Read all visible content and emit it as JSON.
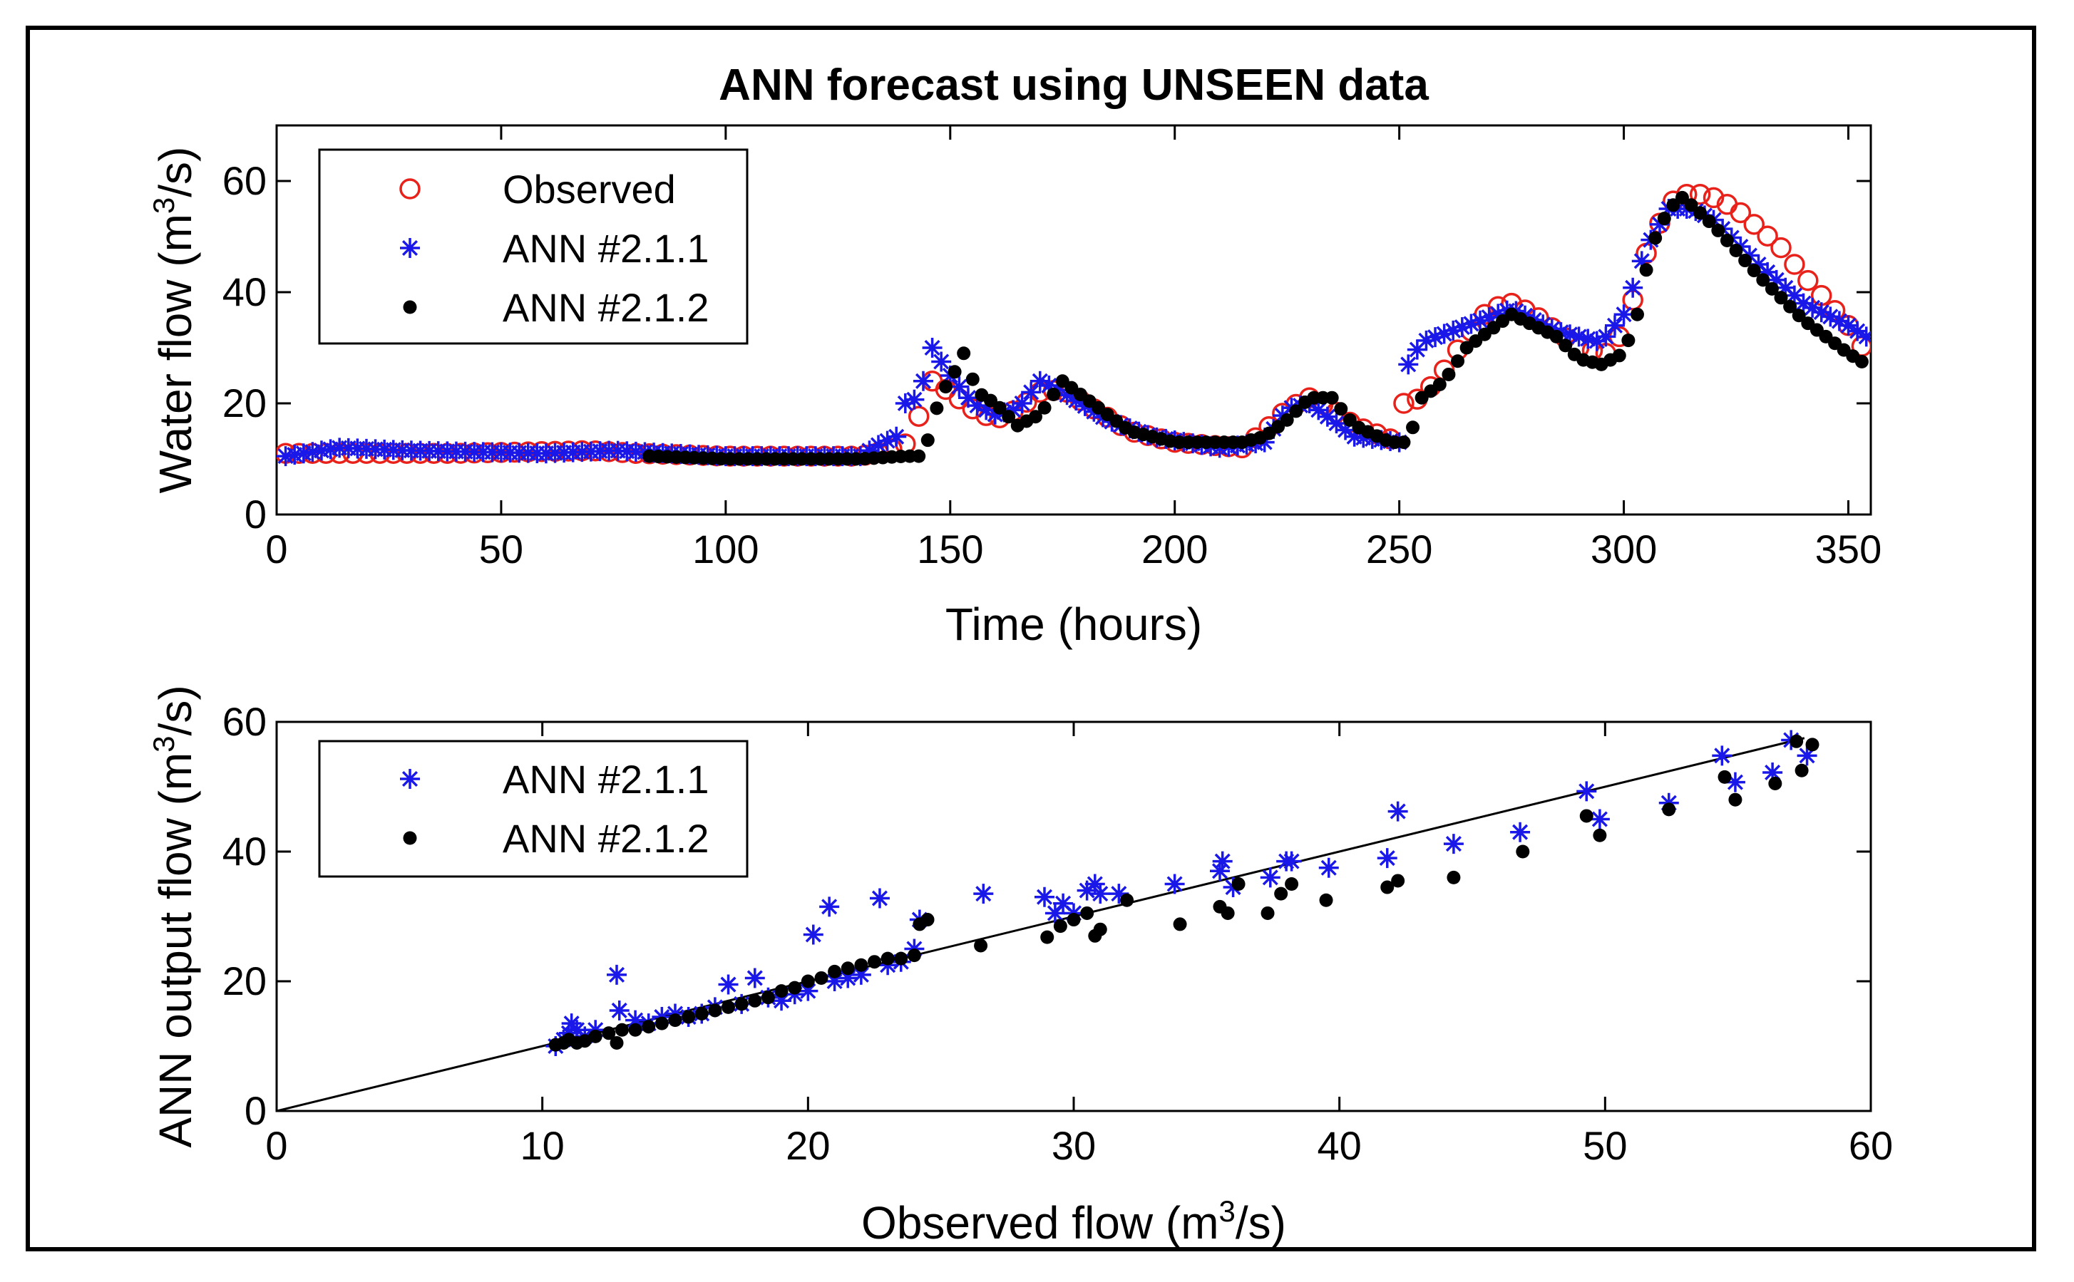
{
  "chart_data": [
    {
      "type": "scatter",
      "title": "ANN forecast using UNSEEN data",
      "xlabel": "Time (hours)",
      "ylabel": "Water flow (m³/s)",
      "ylabel_base": "Water flow (m",
      "ylabel_sup": "3",
      "ylabel_end": "/s)",
      "xlim": [
        0,
        355
      ],
      "ylim": [
        0,
        70
      ],
      "xticks": [
        0,
        50,
        100,
        150,
        200,
        250,
        300,
        350
      ],
      "yticks": [
        0,
        20,
        40,
        60
      ],
      "legend_position": "top-left",
      "series": [
        {
          "name": "Observed",
          "marker": "circle-open",
          "color": "#e8211a",
          "anchors": [
            [
              2,
              11
            ],
            [
              40,
              11
            ],
            [
              70,
              11.5
            ],
            [
              80,
              11
            ],
            [
              100,
              10.5
            ],
            [
              130,
              10.5
            ],
            [
              136,
              11.5
            ],
            [
              141,
              13
            ],
            [
              144,
              20
            ],
            [
              146,
              24
            ],
            [
              150,
              22
            ],
            [
              155,
              19
            ],
            [
              160,
              17
            ],
            [
              165,
              19
            ],
            [
              170,
              22
            ],
            [
              175,
              22.5
            ],
            [
              180,
              20
            ],
            [
              190,
              15
            ],
            [
              200,
              13
            ],
            [
              215,
              12
            ],
            [
              220,
              15
            ],
            [
              225,
              19
            ],
            [
              230,
              21
            ],
            [
              235,
              19
            ],
            [
              240,
              16
            ],
            [
              250,
              13
            ],
            [
              251,
              20
            ],
            [
              255,
              21
            ],
            [
              260,
              26
            ],
            [
              265,
              32
            ],
            [
              270,
              37
            ],
            [
              275,
              38
            ],
            [
              280,
              36
            ],
            [
              290,
              30
            ],
            [
              296,
              29
            ],
            [
              300,
              33
            ],
            [
              305,
              47
            ],
            [
              310,
              56
            ],
            [
              315,
              58
            ],
            [
              320,
              57
            ],
            [
              325,
              55
            ],
            [
              335,
              48
            ],
            [
              340,
              43
            ],
            [
              350,
              34
            ],
            [
              354,
              29
            ]
          ]
        },
        {
          "name": "ANN #2.1.1",
          "marker": "asterisk",
          "color": "#1a18e8",
          "anchors": [
            [
              2,
              10.5
            ],
            [
              14,
              12
            ],
            [
              30,
              11.5
            ],
            [
              60,
              11
            ],
            [
              75,
              11.5
            ],
            [
              100,
              10.5
            ],
            [
              130,
              10.5
            ],
            [
              134,
              12.5
            ],
            [
              138,
              14
            ],
            [
              140,
              20
            ],
            [
              143,
              21
            ],
            [
              146,
              30
            ],
            [
              150,
              25
            ],
            [
              155,
              20
            ],
            [
              160,
              18
            ],
            [
              165,
              19
            ],
            [
              170,
              24
            ],
            [
              175,
              22
            ],
            [
              185,
              17
            ],
            [
              195,
              14
            ],
            [
              210,
              12
            ],
            [
              220,
              13
            ],
            [
              225,
              19
            ],
            [
              230,
              20
            ],
            [
              240,
              14
            ],
            [
              250,
              13
            ],
            [
              252,
              27
            ],
            [
              255,
              31
            ],
            [
              265,
              34
            ],
            [
              275,
              37
            ],
            [
              285,
              33
            ],
            [
              295,
              31
            ],
            [
              300,
              36
            ],
            [
              305,
              48
            ],
            [
              310,
              55
            ],
            [
              315,
              55
            ],
            [
              320,
              53
            ],
            [
              330,
              45
            ],
            [
              340,
              38
            ],
            [
              350,
              34
            ],
            [
              354,
              32
            ]
          ]
        },
        {
          "name": "ANN #2.1.2",
          "marker": "dot",
          "color": "#000000",
          "anchors": [
            [
              83,
              10.5
            ],
            [
              100,
              10
            ],
            [
              130,
              10
            ],
            [
              140,
              10.5
            ],
            [
              144,
              10.5
            ],
            [
              148,
              22
            ],
            [
              150,
              24
            ],
            [
              153,
              29
            ],
            [
              156,
              22
            ],
            [
              160,
              20
            ],
            [
              165,
              16
            ],
            [
              170,
              18
            ],
            [
              175,
              24
            ],
            [
              180,
              21
            ],
            [
              190,
              15
            ],
            [
              200,
              13
            ],
            [
              215,
              13
            ],
            [
              220,
              14
            ],
            [
              225,
              17
            ],
            [
              230,
              21
            ],
            [
              235,
              21
            ],
            [
              240,
              16
            ],
            [
              248,
              13
            ],
            [
              252,
              13
            ],
            [
              255,
              21
            ],
            [
              260,
              24
            ],
            [
              265,
              30
            ],
            [
              270,
              33
            ],
            [
              275,
              36
            ],
            [
              285,
              32
            ],
            [
              290,
              28
            ],
            [
              295,
              27
            ],
            [
              300,
              29
            ],
            [
              303,
              36
            ],
            [
              306,
              48
            ],
            [
              310,
              55
            ],
            [
              313,
              57
            ],
            [
              316,
              55
            ],
            [
              320,
              52
            ],
            [
              330,
              43
            ],
            [
              340,
              35
            ],
            [
              350,
              29
            ],
            [
              354,
              27
            ]
          ]
        }
      ]
    },
    {
      "type": "scatter",
      "title": "",
      "xlabel": "Observed flow (m³/s)",
      "xlabel_base": "Observed flow (m",
      "xlabel_sup": "3",
      "xlabel_end": "/s)",
      "ylabel": "ANN output flow (m³/s)",
      "ylabel_base": "ANN output flow (m",
      "ylabel_sup": "3",
      "ylabel_end": "/s)",
      "xlim": [
        0,
        60
      ],
      "ylim": [
        0,
        60
      ],
      "xticks": [
        0,
        10,
        20,
        30,
        40,
        50,
        60
      ],
      "yticks": [
        0,
        20,
        40,
        60
      ],
      "legend_position": "top-left",
      "reference_line": [
        [
          0,
          0
        ],
        [
          57.5,
          57.5
        ]
      ],
      "series": [
        {
          "name": "ANN #2.1.1",
          "marker": "asterisk",
          "color": "#1a18e8",
          "points": [
            [
              10.5,
              10
            ],
            [
              10.8,
              11
            ],
            [
              11,
              12
            ],
            [
              11.1,
              13.5
            ],
            [
              11.3,
              12.5
            ],
            [
              11.6,
              11.5
            ],
            [
              12,
              12.5
            ],
            [
              12.8,
              21
            ],
            [
              12.9,
              15.5
            ],
            [
              13.5,
              14
            ],
            [
              14,
              13.5
            ],
            [
              14.5,
              14.5
            ],
            [
              15,
              15
            ],
            [
              15.5,
              14.5
            ],
            [
              16,
              15
            ],
            [
              16.5,
              16
            ],
            [
              17,
              19.5
            ],
            [
              17.5,
              16.5
            ],
            [
              18,
              20.5
            ],
            [
              18.5,
              17.5
            ],
            [
              19,
              17
            ],
            [
              19.5,
              18
            ],
            [
              20,
              18.5
            ],
            [
              20.2,
              27.2
            ],
            [
              20.8,
              31.5
            ],
            [
              21,
              20
            ],
            [
              21.5,
              20.5
            ],
            [
              22,
              21
            ],
            [
              22.7,
              32.8
            ],
            [
              23,
              22.5
            ],
            [
              23.5,
              23
            ],
            [
              24,
              25
            ],
            [
              24.2,
              29.5
            ],
            [
              26.6,
              33.5
            ],
            [
              28.9,
              33
            ],
            [
              29.3,
              30.5
            ],
            [
              29.6,
              32
            ],
            [
              30,
              30.5
            ],
            [
              30.5,
              34
            ],
            [
              30.8,
              35
            ],
            [
              31,
              33.5
            ],
            [
              31.7,
              33.5
            ],
            [
              33.8,
              35
            ],
            [
              35.5,
              37
            ],
            [
              35.6,
              38.5
            ],
            [
              36,
              34.5
            ],
            [
              37.4,
              36
            ],
            [
              38,
              38.5
            ],
            [
              38.2,
              38.5
            ],
            [
              39.6,
              37.5
            ],
            [
              41.8,
              39
            ],
            [
              42.2,
              46.2
            ],
            [
              44.3,
              41.2
            ],
            [
              46.8,
              43
            ],
            [
              49.3,
              49.3
            ],
            [
              49.8,
              45
            ],
            [
              52.4,
              47.5
            ],
            [
              54.4,
              54.8
            ],
            [
              54.9,
              50.7
            ],
            [
              56.3,
              52.2
            ],
            [
              57,
              57.2
            ],
            [
              57.6,
              54.8
            ]
          ]
        },
        {
          "name": "ANN #2.1.2",
          "marker": "dot",
          "color": "#000000",
          "points": [
            [
              10.5,
              10.2
            ],
            [
              10.8,
              10.5
            ],
            [
              11,
              11
            ],
            [
              11.3,
              10.5
            ],
            [
              11.6,
              10.8
            ],
            [
              12,
              11.5
            ],
            [
              12.5,
              12
            ],
            [
              12.8,
              10.5
            ],
            [
              13,
              12.5
            ],
            [
              13.5,
              12.5
            ],
            [
              14,
              13
            ],
            [
              14.5,
              13.5
            ],
            [
              15,
              14
            ],
            [
              15.5,
              14.5
            ],
            [
              16,
              15
            ],
            [
              16.5,
              15.5
            ],
            [
              17,
              16
            ],
            [
              17.5,
              16.5
            ],
            [
              18,
              17
            ],
            [
              18.5,
              17.5
            ],
            [
              19,
              18.5
            ],
            [
              19.5,
              19
            ],
            [
              20,
              20
            ],
            [
              20.5,
              20.5
            ],
            [
              21,
              21.5
            ],
            [
              21.5,
              22
            ],
            [
              22,
              22.5
            ],
            [
              22.5,
              23
            ],
            [
              23,
              23.5
            ],
            [
              23.5,
              23.5
            ],
            [
              24,
              24
            ],
            [
              24.2,
              28.8
            ],
            [
              24.5,
              29.5
            ],
            [
              26.5,
              25.5
            ],
            [
              29,
              26.8
            ],
            [
              29.5,
              28.5
            ],
            [
              30,
              29.5
            ],
            [
              30.5,
              30.5
            ],
            [
              30.8,
              27
            ],
            [
              31,
              28
            ],
            [
              32,
              32.5
            ],
            [
              34,
              28.8
            ],
            [
              35.5,
              31.5
            ],
            [
              35.8,
              30.5
            ],
            [
              36.2,
              35
            ],
            [
              37.3,
              30.5
            ],
            [
              37.8,
              33.5
            ],
            [
              38.2,
              35
            ],
            [
              39.5,
              32.5
            ],
            [
              41.8,
              34.5
            ],
            [
              42.2,
              35.5
            ],
            [
              44.3,
              36
            ],
            [
              46.9,
              40
            ],
            [
              49.3,
              45.5
            ],
            [
              49.8,
              42.5
            ],
            [
              52.4,
              46.5
            ],
            [
              54.5,
              51.5
            ],
            [
              54.9,
              48
            ],
            [
              56.4,
              50.5
            ],
            [
              57.2,
              57
            ],
            [
              57.4,
              52.5
            ],
            [
              57.8,
              56.5
            ]
          ]
        }
      ]
    }
  ]
}
